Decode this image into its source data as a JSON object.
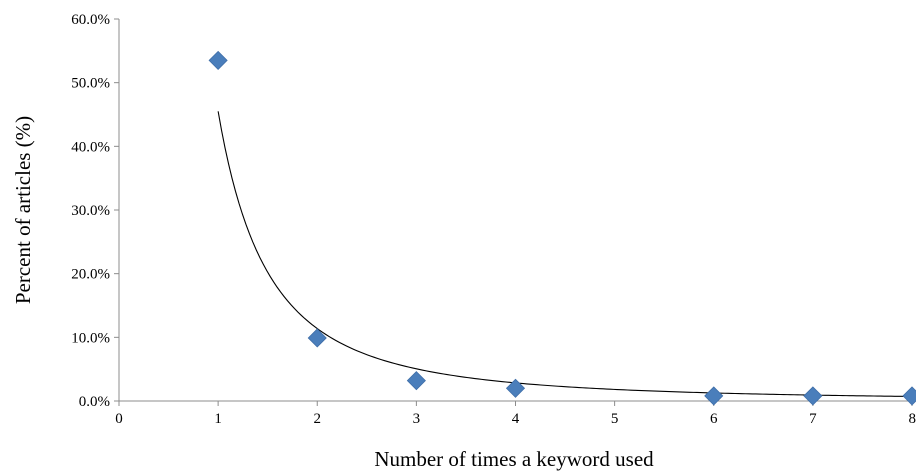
{
  "chart_data": {
    "type": "scatter",
    "xlabel": "Number of times a keyword used",
    "ylabel": "Percent of articles (%)",
    "xlim": [
      0,
      8
    ],
    "ylim": [
      0,
      60
    ],
    "x_ticks": [
      0,
      1,
      2,
      3,
      4,
      5,
      6,
      7,
      8
    ],
    "y_ticks": [
      0,
      10,
      20,
      30,
      40,
      50,
      60
    ],
    "y_tick_format": "percent_one_decimal",
    "grid": false,
    "legend": "none",
    "marker": "diamond",
    "marker_color": "#4a7ebb",
    "series": [
      {
        "x": [
          1,
          2,
          3,
          4,
          6,
          7,
          8
        ],
        "y": [
          53.5,
          9.9,
          3.2,
          2.0,
          0.8,
          0.8,
          0.8
        ]
      }
    ],
    "trendline": {
      "type": "power",
      "coefficient": 45.5,
      "exponent": -2.0,
      "x_range": [
        1,
        8
      ],
      "color": "#000000"
    }
  }
}
